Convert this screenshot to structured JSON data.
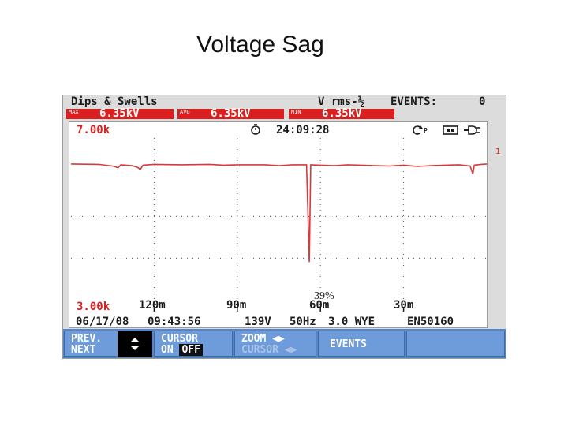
{
  "slide": {
    "title": "Voltage Sag"
  },
  "header": {
    "mode": "Dips & Swells",
    "measure_label": "V rms-½",
    "events_label": "EVENTS:",
    "events_count": "0",
    "max_label": "MAX",
    "max_value": "6.35kV",
    "avg_label": "AVG",
    "avg_value": "6.35kV",
    "min_label": "MIN",
    "min_value": "6.35kV"
  },
  "plot": {
    "y_top_label": "7.00k",
    "y_bottom_label": "3.00k",
    "timer_icon": "stopwatch-icon",
    "elapsed_time": "24:09:28",
    "phase_marker": "1",
    "annotation": "39%",
    "time_ticks": [
      "120m",
      "90m",
      "60m",
      "30m"
    ],
    "status_icons": [
      "rotation-icon",
      "battery-icon",
      "mains-plug-icon"
    ]
  },
  "chart_data": {
    "type": "line",
    "title": "",
    "xlabel": "",
    "ylabel": "",
    "ylim": [
      3000,
      7000
    ],
    "x_range_minutes_ago": [
      150,
      0
    ],
    "x_ticks": [
      "120m",
      "90m",
      "60m",
      "30m"
    ],
    "series": [
      {
        "values_description_points": [
          [
            150,
            6380
          ],
          [
            140,
            6370
          ],
          [
            135,
            6330
          ],
          [
            133,
            6290
          ],
          [
            132,
            6360
          ],
          [
            128,
            6340
          ],
          [
            126,
            6300
          ],
          [
            125,
            6250
          ],
          [
            124,
            6350
          ],
          [
            120,
            6370
          ],
          [
            110,
            6360
          ],
          [
            100,
            6370
          ],
          [
            95,
            6350
          ],
          [
            90,
            6360
          ],
          [
            80,
            6360
          ],
          [
            75,
            6340
          ],
          [
            70,
            6360
          ],
          [
            65,
            6360
          ],
          [
            64,
            4030
          ],
          [
            63.5,
            6360
          ],
          [
            60,
            6350
          ],
          [
            55,
            6340
          ],
          [
            50,
            6360
          ],
          [
            40,
            6340
          ],
          [
            35,
            6330
          ],
          [
            30,
            6350
          ],
          [
            25,
            6320
          ],
          [
            20,
            6340
          ],
          [
            15,
            6350
          ],
          [
            10,
            6360
          ],
          [
            6,
            6330
          ],
          [
            5,
            6140
          ],
          [
            4.5,
            6350
          ],
          [
            2,
            6370
          ],
          [
            0,
            6380
          ]
        ]
      }
    ],
    "grid": true,
    "annotations": [
      "39%"
    ]
  },
  "footer": {
    "date": "06/17/08",
    "time": "09:43:56",
    "nominal_voltage": "139V",
    "frequency": "50Hz",
    "config": "3.0 WYE",
    "standard": "EN50160"
  },
  "softkeys": {
    "prev_next_1": "PREV.",
    "prev_next_2": "NEXT",
    "updown_icon": "up-down-arrows-icon",
    "cursor_1": "CURSOR",
    "cursor_on": "ON",
    "cursor_off": "OFF",
    "zoom_1": "ZOOM ◀▶",
    "zoom_2": "CURSOR ◀▶",
    "events": "EVENTS"
  },
  "colors": {
    "trace": "#d63a3a",
    "highlight": "#d91f1f",
    "softkey_bar": "#5585c8",
    "softkey": "#6e9cdb"
  }
}
